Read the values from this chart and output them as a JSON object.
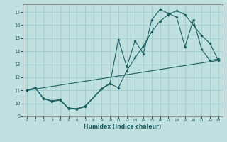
{
  "title": "",
  "xlabel": "Humidex (Indice chaleur)",
  "bg_color": "#c0e0e0",
  "grid_color": "#98c8c8",
  "line_color": "#1a6060",
  "xlim": [
    -0.5,
    23.5
  ],
  "ylim": [
    9,
    17.6
  ],
  "yticks": [
    9,
    10,
    11,
    12,
    13,
    14,
    15,
    16,
    17
  ],
  "xticks": [
    0,
    1,
    2,
    3,
    4,
    5,
    6,
    7,
    8,
    9,
    10,
    11,
    12,
    13,
    14,
    15,
    16,
    17,
    18,
    19,
    20,
    21,
    22,
    23
  ],
  "line1_x": [
    0,
    1,
    2,
    3,
    4,
    5,
    6,
    7,
    9,
    10,
    11,
    12,
    13,
    14,
    15,
    16,
    17,
    18,
    19,
    20,
    21,
    22,
    23
  ],
  "line1_y": [
    11.0,
    11.2,
    10.4,
    10.2,
    10.3,
    9.65,
    9.6,
    9.8,
    11.15,
    11.55,
    14.9,
    12.8,
    14.8,
    13.8,
    16.4,
    17.2,
    16.9,
    16.6,
    14.35,
    16.4,
    14.15,
    13.3,
    13.4
  ],
  "line2_x": [
    0,
    1,
    2,
    3,
    4,
    5,
    6,
    7,
    9,
    10,
    11,
    12,
    13,
    14,
    15,
    16,
    17,
    18,
    19,
    20,
    21,
    22,
    23
  ],
  "line2_y": [
    11.0,
    11.2,
    10.35,
    10.15,
    10.25,
    9.6,
    9.55,
    9.75,
    11.1,
    11.5,
    11.2,
    12.5,
    13.5,
    14.4,
    15.5,
    16.3,
    16.8,
    17.1,
    16.8,
    16.0,
    15.2,
    14.6,
    13.3
  ],
  "line3_x": [
    0,
    23
  ],
  "line3_y": [
    11.0,
    13.3
  ]
}
